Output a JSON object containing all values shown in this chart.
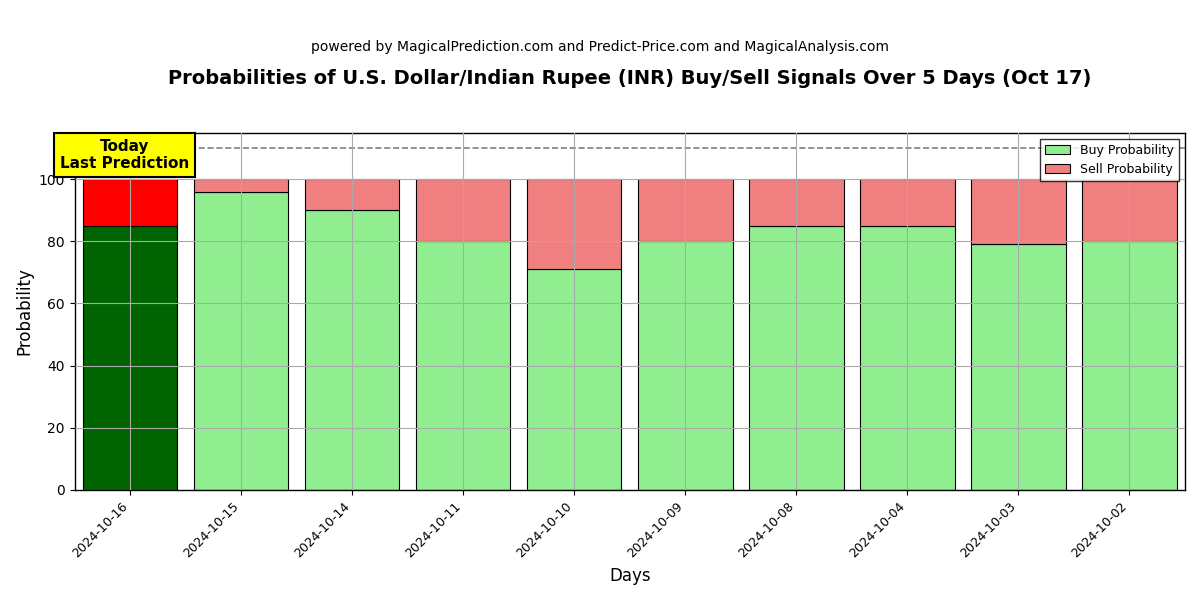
{
  "title": "Probabilities of U.S. Dollar/Indian Rupee (INR) Buy/Sell Signals Over 5 Days (Oct 17)",
  "subtitle": "powered by MagicalPrediction.com and Predict-Price.com and MagicalAnalysis.com",
  "xlabel": "Days",
  "ylabel": "Probability",
  "dates": [
    "2024-10-16",
    "2024-10-15",
    "2024-10-14",
    "2024-10-11",
    "2024-10-10",
    "2024-10-09",
    "2024-10-08",
    "2024-10-04",
    "2024-10-03",
    "2024-10-02"
  ],
  "buy_probs": [
    85,
    96,
    90,
    80,
    71,
    80,
    85,
    85,
    79,
    80
  ],
  "sell_probs": [
    15,
    4,
    10,
    20,
    29,
    20,
    15,
    15,
    21,
    20
  ],
  "today_buy_color": "#006400",
  "today_sell_color": "#FF0000",
  "other_buy_color": "#90EE90",
  "other_sell_color": "#F08080",
  "today_annotation_bg": "#FFFF00",
  "today_annotation_text": "Today\nLast Prediction",
  "dashed_line_y": 110,
  "ylim": [
    0,
    115
  ],
  "yticks": [
    0,
    20,
    40,
    60,
    80,
    100
  ],
  "legend_buy_label": "Buy Probability",
  "legend_sell_label": "Sell Probability",
  "bar_width": 0.85,
  "edge_color": "black",
  "edge_linewidth": 0.8,
  "grid_color": "#aaaaaa",
  "background_color": "white",
  "title_fontsize": 14,
  "subtitle_fontsize": 10,
  "axis_label_fontsize": 12
}
